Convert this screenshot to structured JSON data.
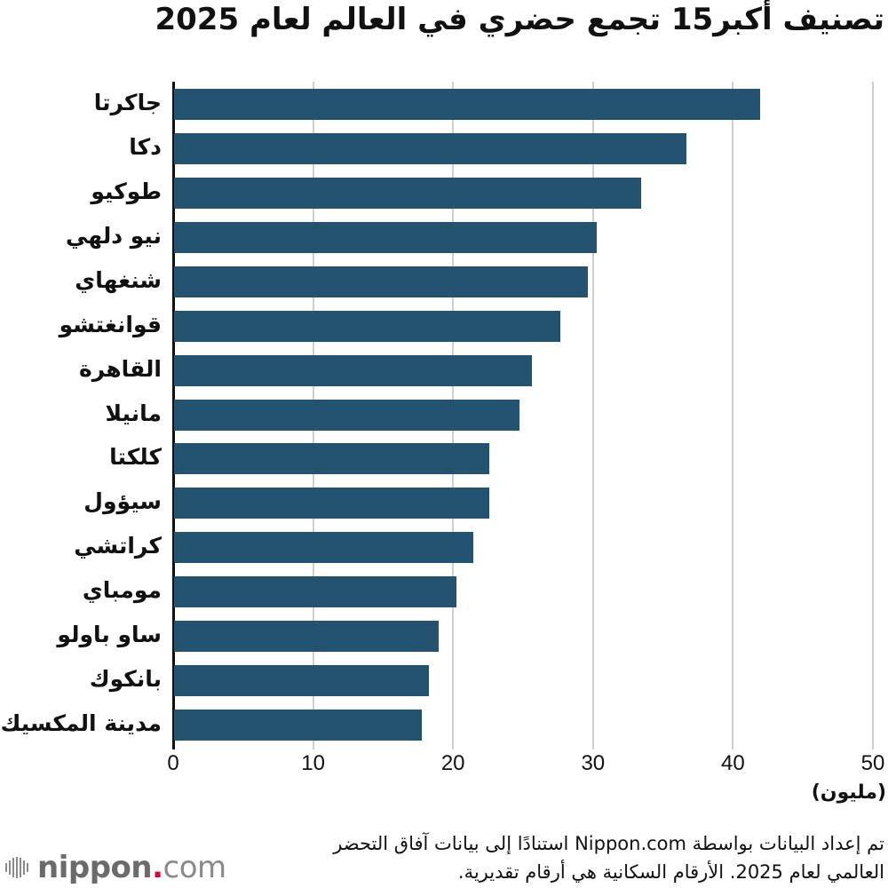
{
  "header": {
    "title": "تصنيف أكبر15 تجمع حضري في العالم لعام 2025"
  },
  "chart_data": {
    "type": "bar",
    "orientation": "horizontal",
    "title": "تصنيف أكبر15 تجمع حضري في العالم لعام 2025",
    "xlabel": "(مليون)",
    "ylabel": "",
    "xlim": [
      0,
      50
    ],
    "xticks": [
      0,
      10,
      20,
      30,
      40,
      50
    ],
    "grid": true,
    "legend": null,
    "bar_color": "#245370",
    "categories": [
      "جاكرتا",
      "دكا",
      "طوكيو",
      "نيو دلهي",
      "شنغهاي",
      "قوانغتشو",
      "القاهرة",
      "مانيلا",
      "كلكتا",
      "سيؤول",
      "كراتشي",
      "مومباي",
      "ساو باولو",
      "بانكوك",
      "مدينة المكسيك"
    ],
    "values": [
      41.9,
      36.6,
      33.4,
      30.2,
      29.6,
      27.6,
      25.6,
      24.7,
      22.5,
      22.5,
      21.4,
      20.2,
      18.9,
      18.2,
      17.7
    ]
  },
  "axis": {
    "ticks": [
      "0",
      "10",
      "20",
      "30",
      "40",
      "50"
    ],
    "unit": "(مليون)"
  },
  "footer": {
    "note_line1": "تم إعداد البيانات بواسطة Nippon.com استنادًا إلى بيانات آفاق التحضر",
    "note_line2": "العالمي لعام 2025. الأرقام السكانية هي أرقام تقديرية.",
    "logo": {
      "name": "nippon",
      "dot": ".",
      "suffix": "com",
      "icon": "nippon-logo-icon",
      "accent_color": "#e4002b"
    }
  }
}
